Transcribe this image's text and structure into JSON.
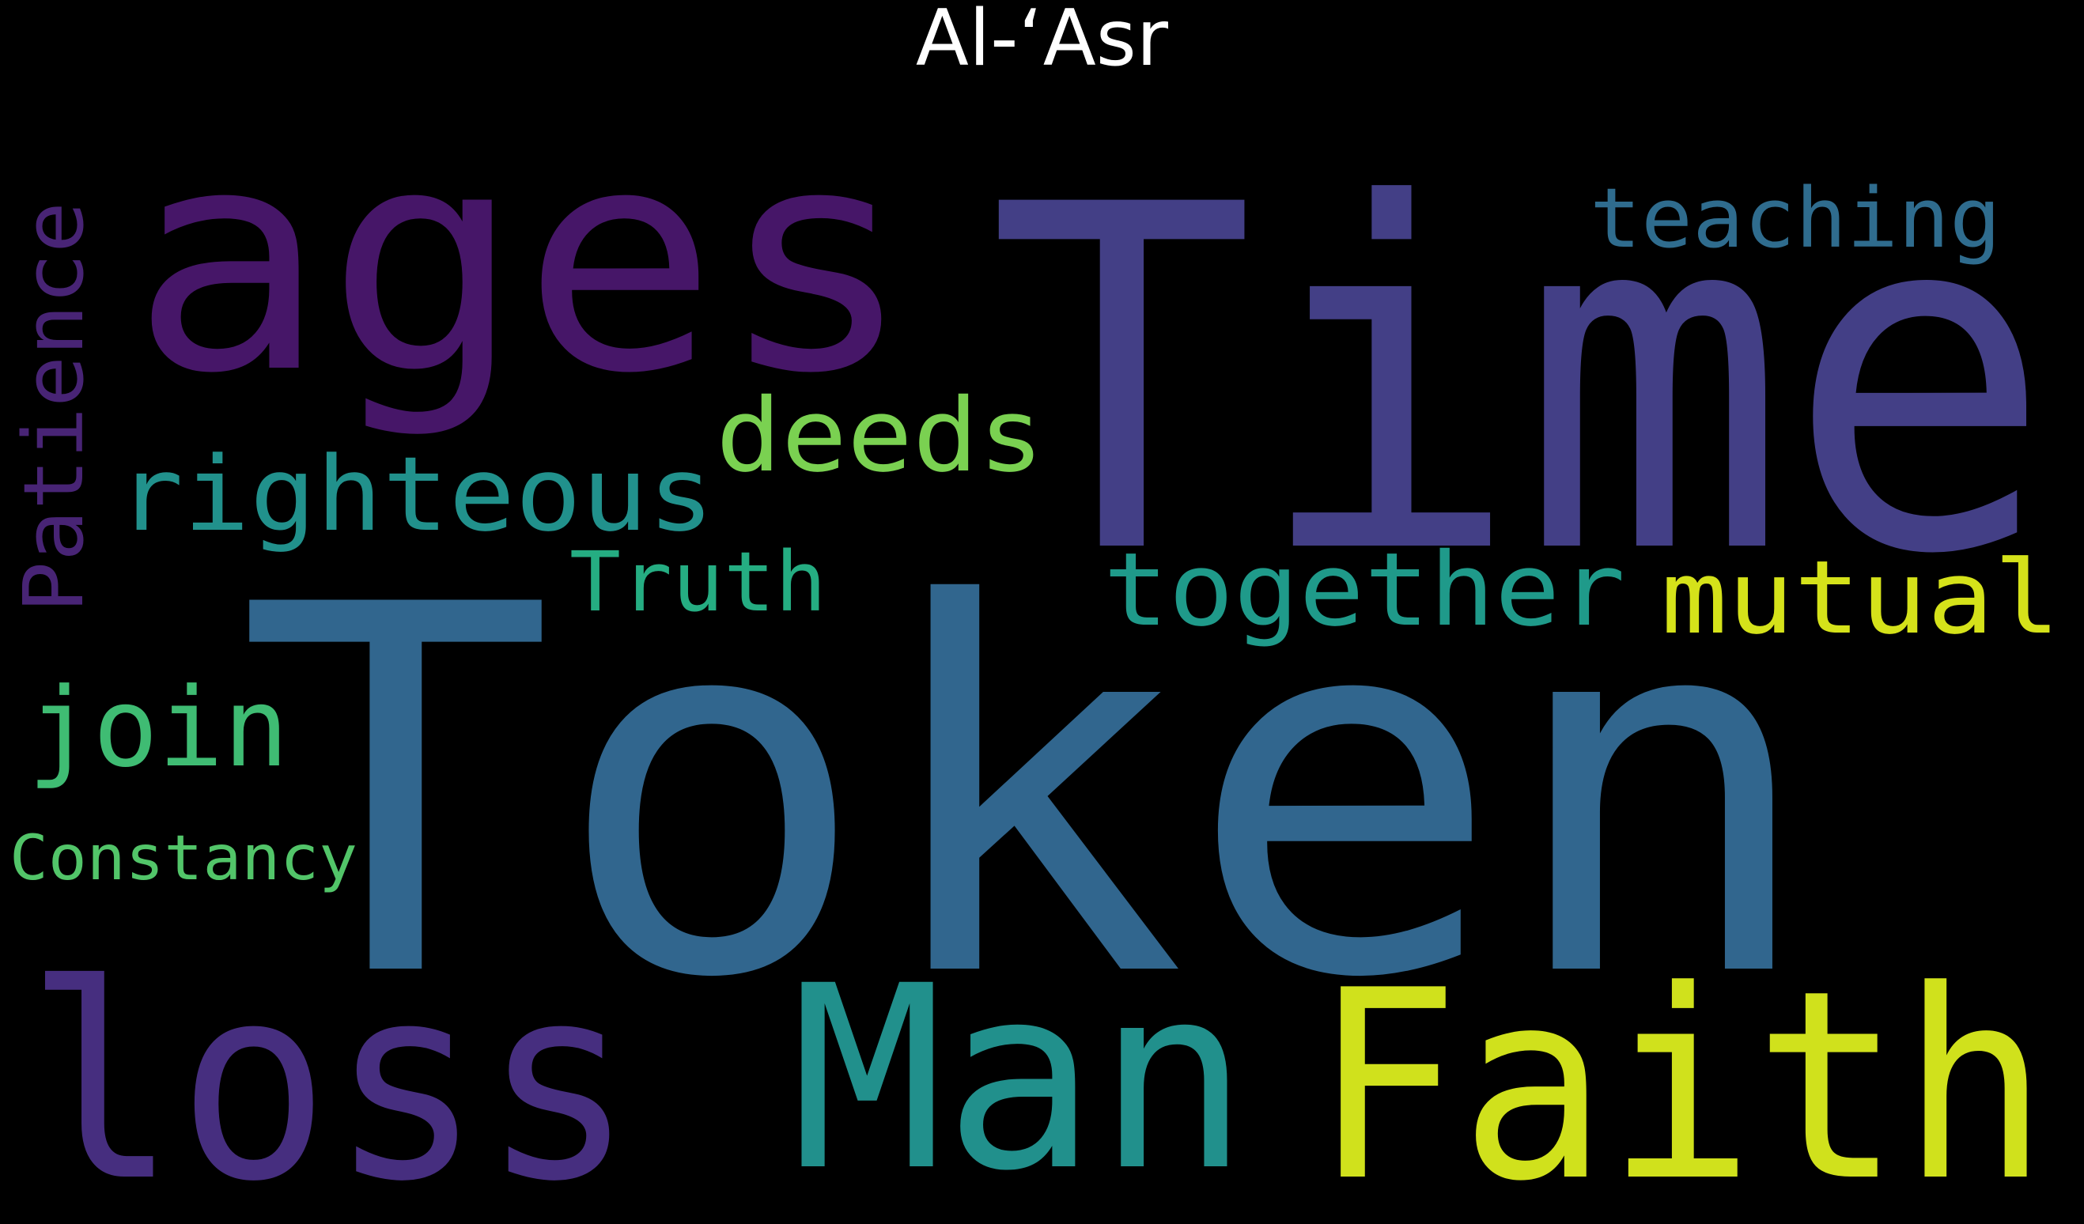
{
  "title": "Al-‘Asr",
  "background": "#000000",
  "words": [
    {
      "id": "token",
      "text": "Token",
      "color": "#31668e"
    },
    {
      "id": "time",
      "text": "Time",
      "color": "#433f86"
    },
    {
      "id": "ages",
      "text": "ages",
      "color": "#461668"
    },
    {
      "id": "loss",
      "text": "loss",
      "color": "#462e7f"
    },
    {
      "id": "man",
      "text": "Man",
      "color": "#21908c"
    },
    {
      "id": "faith",
      "text": "Faith",
      "color": "#d0e11c"
    },
    {
      "id": "teaching",
      "text": "teaching",
      "color": "#2f6c8e"
    },
    {
      "id": "deeds",
      "text": "deeds",
      "color": "#7ad151"
    },
    {
      "id": "righteous",
      "text": "righteous",
      "color": "#21918c"
    },
    {
      "id": "together",
      "text": "together",
      "color": "#1f9a8a"
    },
    {
      "id": "mutual",
      "text": "mutual",
      "color": "#d5e21a"
    },
    {
      "id": "truth",
      "text": "Truth",
      "color": "#25ad82"
    },
    {
      "id": "patience",
      "text": "Patience",
      "color": "#482475"
    },
    {
      "id": "join",
      "text": "join",
      "color": "#3fbc73"
    },
    {
      "id": "constancy",
      "text": "Constancy",
      "color": "#52c569"
    }
  ]
}
